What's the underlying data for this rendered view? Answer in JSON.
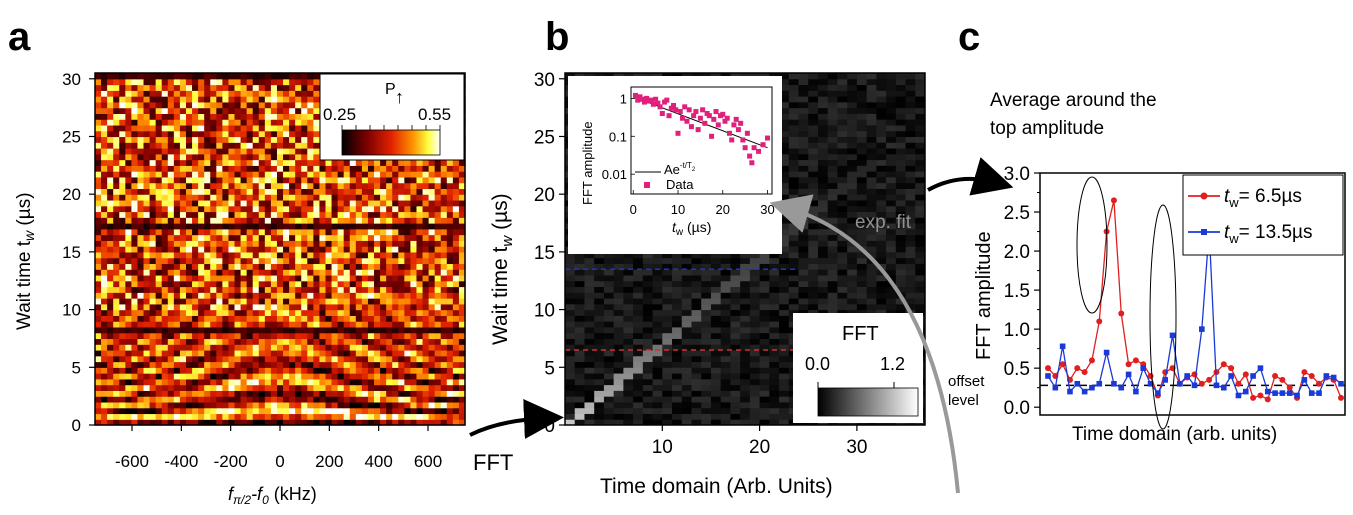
{
  "panels": {
    "a": {
      "letter": "a"
    },
    "b": {
      "letter": "b"
    },
    "c": {
      "letter": "c"
    }
  },
  "arrow_label": "FFT",
  "chart_data": [
    {
      "panel": "a",
      "type": "heatmap",
      "ylabel": "Wait time t",
      "ylabel_sub": "w",
      "ylabel_unit": " (µs)",
      "xlabel": "f",
      "xlabel_sub1": "π/2",
      "xlabel_mid": "-f",
      "xlabel_sub2": "0",
      "xlabel_unit": " (kHz)",
      "xlim": [
        -750,
        750
      ],
      "ylim": [
        0,
        30.5
      ],
      "xticks": [
        -600,
        -400,
        -200,
        0,
        200,
        400,
        600
      ],
      "yticks": [
        0,
        5,
        10,
        15,
        20,
        25,
        30
      ],
      "colorbar": {
        "label": "P",
        "label_arrow": "↑",
        "min": 0.25,
        "max": 0.55,
        "min_label": "0.25",
        "max_label": "0.55",
        "colors": [
          "#000000",
          "#7a0000",
          "#e02000",
          "#ff9000",
          "#ffff40",
          "#ffffff"
        ]
      }
    },
    {
      "panel": "b",
      "type": "heatmap",
      "ylabel": "Wait time t",
      "ylabel_sub": "w",
      "ylabel_unit": " (µs)",
      "xlabel": "Time domain (Arb. Units)",
      "xlim": [
        0,
        37
      ],
      "ylim": [
        0,
        30.5
      ],
      "xticks": [
        10,
        20,
        30
      ],
      "yticks": [
        0,
        5,
        10,
        15,
        20,
        25,
        30
      ],
      "diagonal": {
        "x_start": 1,
        "y_start": 0.5,
        "x_end": 25,
        "y_end": 18
      },
      "hlines": [
        {
          "y": 13.5,
          "color": "#2030d0"
        },
        {
          "y": 6.5,
          "color": "#d03030"
        }
      ],
      "colorbar": {
        "label": "FFT",
        "min": 0.0,
        "max": 1.2,
        "min_label": "0.0",
        "max_label": "1.2"
      },
      "annotation": "exp. fit"
    },
    {
      "panel": "b-inset",
      "type": "scatter",
      "xlabel": "t",
      "xlabel_sub": "w",
      "xlabel_unit": " (µs)",
      "ylabel": "FFT amplitude",
      "yscale": "log",
      "xlim": [
        -0.5,
        31
      ],
      "ylim": [
        0.003,
        2
      ],
      "xticks": [
        0,
        10,
        20,
        30
      ],
      "yticks": [
        0.01,
        0.1,
        1
      ],
      "ytick_labels": [
        "0.01",
        "0.1",
        "1"
      ],
      "legend": [
        {
          "label": "Ae",
          "sup": "-t/T",
          "sup_sub": "2",
          "type": "line"
        },
        {
          "label": "Data",
          "type": "marker"
        }
      ],
      "fit": {
        "x": [
          0,
          30
        ],
        "y": [
          1.1,
          0.05
        ]
      },
      "series": [
        {
          "name": "Data",
          "color": "#e0207a",
          "x": [
            0.5,
            1,
            1.5,
            2,
            2.5,
            3,
            3.5,
            4,
            4.5,
            5,
            5.5,
            6,
            6.5,
            7,
            7.5,
            8,
            8.5,
            9,
            9.5,
            10,
            10.5,
            11,
            11.5,
            12,
            12.5,
            13,
            13.5,
            14,
            14.5,
            15,
            15.5,
            16,
            16.5,
            17,
            17.5,
            18,
            18.5,
            19,
            19.5,
            20,
            20.5,
            21,
            21.5,
            22,
            22.5,
            23,
            23.5,
            24,
            24.5,
            25,
            25.5,
            26,
            26.5,
            27,
            28,
            29,
            30
          ],
          "y": [
            1.2,
            0.9,
            1.1,
            0.95,
            0.8,
            1.0,
            0.85,
            0.9,
            0.7,
            0.95,
            0.75,
            0.6,
            0.4,
            0.8,
            0.9,
            0.35,
            0.55,
            0.65,
            0.5,
            0.12,
            0.45,
            0.3,
            0.6,
            0.25,
            0.5,
            0.18,
            0.35,
            0.45,
            0.15,
            0.3,
            0.5,
            0.22,
            0.4,
            0.35,
            0.1,
            0.28,
            0.45,
            0.2,
            0.35,
            0.38,
            0.25,
            0.3,
            0.12,
            0.08,
            0.2,
            0.28,
            0.15,
            0.22,
            0.08,
            0.05,
            0.12,
            0.03,
            0.02,
            0.05,
            0.04,
            0.06,
            0.09
          ]
        }
      ]
    },
    {
      "panel": "c",
      "type": "line",
      "xlabel": "Time domain (arb. units)",
      "ylabel": "FFT amplitude",
      "ylim": [
        -0.1,
        3.0
      ],
      "yticks": [
        0.0,
        0.5,
        1.0,
        1.5,
        2.0,
        2.5,
        3.0
      ],
      "ytick_labels": [
        "0.0",
        "0.5",
        "1.0",
        "1.5",
        "2.0",
        "2.5",
        "3.0"
      ],
      "title": "Average around the top amplitude",
      "offset_label": "offset level",
      "offset_value": 0.28,
      "x_count": 41,
      "series": [
        {
          "name": "t",
          "name_sub": "w",
          "name_rest": "= 6.5µs",
          "color": "#e02020",
          "marker": "circle",
          "values": [
            0.5,
            0.4,
            0.55,
            0.35,
            0.5,
            0.45,
            0.6,
            1.1,
            2.25,
            2.65,
            1.2,
            0.55,
            0.6,
            0.55,
            0.4,
            0.15,
            0.45,
            0.5,
            0.3,
            0.38,
            0.42,
            0.3,
            0.35,
            0.45,
            0.55,
            0.5,
            0.3,
            0.42,
            0.12,
            0.15,
            0.1,
            0.4,
            0.35,
            0.25,
            0.12,
            0.45,
            0.4,
            0.3,
            0.38,
            0.35,
            0.12
          ]
        },
        {
          "name": "t",
          "name_sub": "w",
          "name_rest": "= 13.5µs",
          "color": "#1a3ad8",
          "marker": "square",
          "values": [
            0.4,
            0.25,
            0.78,
            0.2,
            0.3,
            0.2,
            0.25,
            0.3,
            0.7,
            0.3,
            0.25,
            0.42,
            0.2,
            0.5,
            0.3,
            0.18,
            0.35,
            0.92,
            0.3,
            0.4,
            0.28,
            1.0,
            2.27,
            0.28,
            0.25,
            0.4,
            0.15,
            0.2,
            0.4,
            0.5,
            0.2,
            0.18,
            0.18,
            0.18,
            0.15,
            0.35,
            0.18,
            0.18,
            0.4,
            0.38,
            0.3
          ]
        }
      ]
    }
  ]
}
